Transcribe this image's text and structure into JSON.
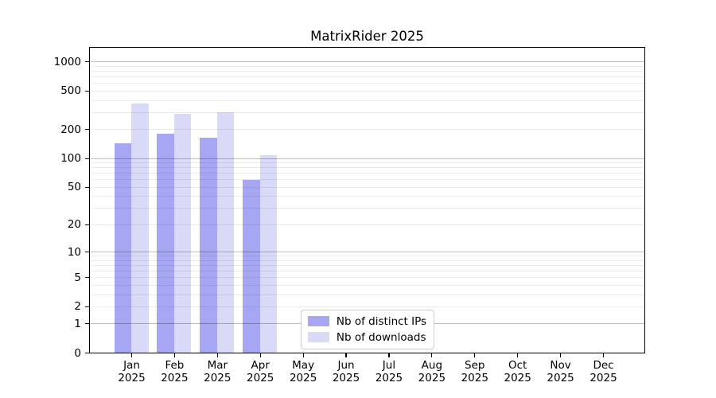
{
  "title": "MatrixRider 2025",
  "chart_data": {
    "type": "bar",
    "title": "MatrixRider 2025",
    "categories": [
      "Jan 2025",
      "Feb 2025",
      "Mar 2025",
      "Apr 2025",
      "May 2025",
      "Jun 2025",
      "Jul 2025",
      "Aug 2025",
      "Sep 2025",
      "Oct 2025",
      "Nov 2025",
      "Dec 2025"
    ],
    "series": [
      {
        "name": "Nb of distinct IPs",
        "color": "#a6a6f2",
        "values": [
          145,
          180,
          165,
          60,
          0,
          0,
          0,
          0,
          0,
          0,
          0,
          0
        ]
      },
      {
        "name": "Nb of downloads",
        "color": "#d9d9f8",
        "values": [
          370,
          290,
          300,
          108,
          0,
          0,
          0,
          0,
          0,
          0,
          0,
          0
        ]
      }
    ],
    "yscale": "log1p",
    "yticks": [
      0,
      1,
      2,
      5,
      10,
      20,
      50,
      100,
      200,
      500,
      1000
    ],
    "ylim": [
      0,
      1400
    ],
    "xlabel": "",
    "ylabel": "",
    "grid": true,
    "grid_above_bars": true,
    "legend_position": "lower center"
  },
  "colors": {
    "background": "#ffffff",
    "axis": "#000000",
    "text": "#000000",
    "major_grid": "rgba(0,0,0,0.25)",
    "minor_grid": "rgba(0,0,0,0.08)",
    "legend_border": "#cccccc"
  }
}
